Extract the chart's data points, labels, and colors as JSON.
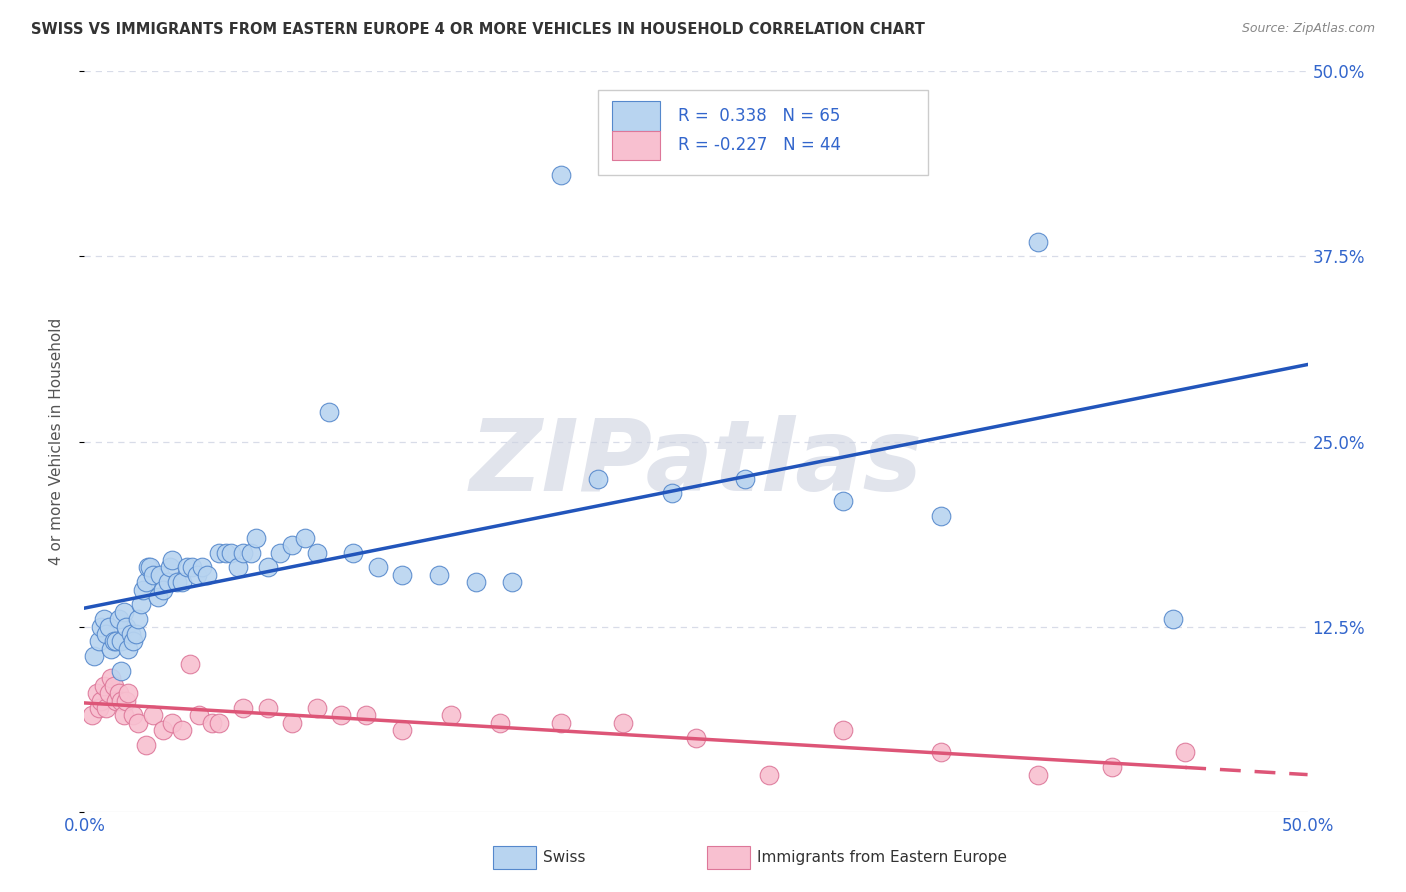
{
  "title": "SWISS VS IMMIGRANTS FROM EASTERN EUROPE 4 OR MORE VEHICLES IN HOUSEHOLD CORRELATION CHART",
  "source": "Source: ZipAtlas.com",
  "ylabel": "4 or more Vehicles in Household",
  "yticks": [
    0.0,
    0.125,
    0.25,
    0.375,
    0.5
  ],
  "ytick_labels": [
    "",
    "12.5%",
    "25.0%",
    "37.5%",
    "50.0%"
  ],
  "xmin": 0.0,
  "xmax": 0.5,
  "ymin": 0.0,
  "ymax": 0.5,
  "swiss_color": "#b8d4f0",
  "swiss_edge_color": "#5588cc",
  "immigrant_color": "#f8c0d0",
  "immigrant_edge_color": "#dd7799",
  "swiss_line_color": "#2255bb",
  "immigrant_line_color": "#dd5577",
  "R_swiss": 0.338,
  "N_swiss": 65,
  "R_immigrant": -0.227,
  "N_immigrant": 44,
  "legend_label_swiss": "Swiss",
  "legend_label_immigrant": "Immigrants from Eastern Europe",
  "swiss_x": [
    0.004,
    0.006,
    0.007,
    0.008,
    0.009,
    0.01,
    0.011,
    0.012,
    0.013,
    0.014,
    0.015,
    0.015,
    0.016,
    0.017,
    0.018,
    0.019,
    0.02,
    0.021,
    0.022,
    0.023,
    0.024,
    0.025,
    0.026,
    0.027,
    0.028,
    0.03,
    0.031,
    0.032,
    0.034,
    0.035,
    0.036,
    0.038,
    0.04,
    0.042,
    0.044,
    0.046,
    0.048,
    0.05,
    0.055,
    0.058,
    0.06,
    0.063,
    0.065,
    0.068,
    0.07,
    0.075,
    0.08,
    0.085,
    0.09,
    0.095,
    0.1,
    0.11,
    0.12,
    0.13,
    0.145,
    0.16,
    0.175,
    0.195,
    0.21,
    0.24,
    0.27,
    0.31,
    0.35,
    0.39,
    0.445
  ],
  "swiss_y": [
    0.105,
    0.115,
    0.125,
    0.13,
    0.12,
    0.125,
    0.11,
    0.115,
    0.115,
    0.13,
    0.095,
    0.115,
    0.135,
    0.125,
    0.11,
    0.12,
    0.115,
    0.12,
    0.13,
    0.14,
    0.15,
    0.155,
    0.165,
    0.165,
    0.16,
    0.145,
    0.16,
    0.15,
    0.155,
    0.165,
    0.17,
    0.155,
    0.155,
    0.165,
    0.165,
    0.16,
    0.165,
    0.16,
    0.175,
    0.175,
    0.175,
    0.165,
    0.175,
    0.175,
    0.185,
    0.165,
    0.175,
    0.18,
    0.185,
    0.175,
    0.27,
    0.175,
    0.165,
    0.16,
    0.16,
    0.155,
    0.155,
    0.43,
    0.225,
    0.215,
    0.225,
    0.21,
    0.2,
    0.385,
    0.13
  ],
  "immigrant_x": [
    0.003,
    0.005,
    0.006,
    0.007,
    0.008,
    0.009,
    0.01,
    0.011,
    0.012,
    0.013,
    0.014,
    0.015,
    0.016,
    0.017,
    0.018,
    0.02,
    0.022,
    0.025,
    0.028,
    0.032,
    0.036,
    0.04,
    0.043,
    0.047,
    0.052,
    0.055,
    0.065,
    0.075,
    0.085,
    0.095,
    0.105,
    0.115,
    0.13,
    0.15,
    0.17,
    0.195,
    0.22,
    0.25,
    0.28,
    0.31,
    0.35,
    0.39,
    0.42,
    0.45
  ],
  "immigrant_y": [
    0.065,
    0.08,
    0.07,
    0.075,
    0.085,
    0.07,
    0.08,
    0.09,
    0.085,
    0.075,
    0.08,
    0.075,
    0.065,
    0.075,
    0.08,
    0.065,
    0.06,
    0.045,
    0.065,
    0.055,
    0.06,
    0.055,
    0.1,
    0.065,
    0.06,
    0.06,
    0.07,
    0.07,
    0.06,
    0.07,
    0.065,
    0.065,
    0.055,
    0.065,
    0.06,
    0.06,
    0.06,
    0.05,
    0.025,
    0.055,
    0.04,
    0.025,
    0.03,
    0.04
  ],
  "background_color": "#ffffff",
  "grid_color": "#d8dce8",
  "watermark_text": "ZIPatlas",
  "watermark_color": "#cdd2e0"
}
